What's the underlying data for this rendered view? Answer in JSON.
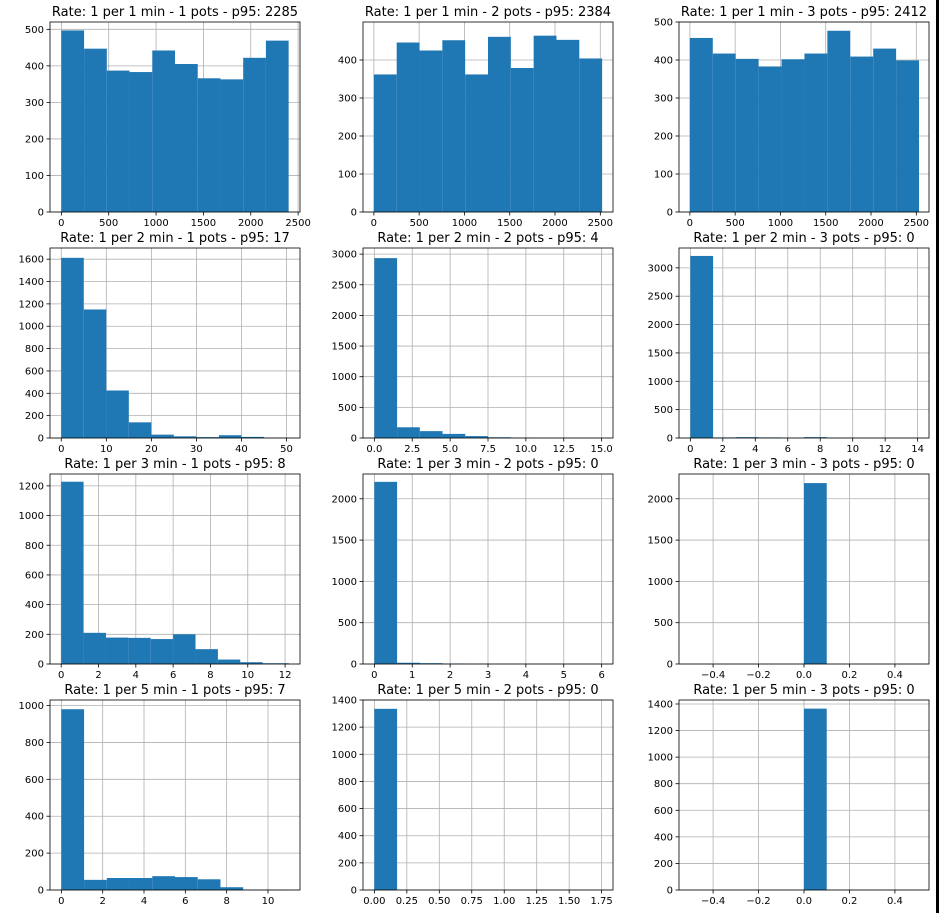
{
  "figure": {
    "accent_color": "#1f77b4",
    "grid_color": "#b0b0b0"
  },
  "chart_data": [
    {
      "type": "bar",
      "title": "Rate: 1 per 1 min - 1 pots - p95: 2285",
      "xlim": [
        -120,
        2520
      ],
      "ylim": [
        0,
        520
      ],
      "xticks": [
        0,
        500,
        1000,
        1500,
        2000,
        2500
      ],
      "yticks": [
        0,
        100,
        200,
        300,
        400,
        500
      ],
      "bin_edges": [
        0,
        240,
        480,
        720,
        960,
        1200,
        1440,
        1680,
        1920,
        2160,
        2400
      ],
      "values": [
        497,
        447,
        387,
        383,
        442,
        405,
        366,
        363,
        422,
        469
      ]
    },
    {
      "type": "bar",
      "title": "Rate: 1 per 1 min - 2 pots - p95: 2384",
      "xlim": [
        -120,
        2640
      ],
      "ylim": [
        0,
        500
      ],
      "xticks": [
        0,
        500,
        1000,
        1500,
        2000,
        2500
      ],
      "yticks": [
        0,
        100,
        200,
        300,
        400
      ],
      "bin_edges": [
        0,
        252,
        504,
        756,
        1008,
        1260,
        1512,
        1764,
        2016,
        2268,
        2520
      ],
      "values": [
        362,
        446,
        425,
        452,
        362,
        461,
        379,
        464,
        453,
        404
      ]
    },
    {
      "type": "bar",
      "title": "Rate: 1 per 1 min - 3 pots - p95: 2412",
      "xlim": [
        -120,
        2640
      ],
      "ylim": [
        0,
        500
      ],
      "xticks": [
        0,
        500,
        1000,
        1500,
        2000,
        2500
      ],
      "yticks": [
        0,
        100,
        200,
        300,
        400,
        500
      ],
      "bin_edges": [
        0,
        253,
        506,
        759,
        1012,
        1265,
        1518,
        1771,
        2024,
        2277,
        2530
      ],
      "values": [
        458,
        417,
        403,
        383,
        402,
        417,
        477,
        409,
        430,
        399
      ]
    },
    {
      "type": "bar",
      "title": "Rate: 1 per 2 min - 1 pots - p95: 17",
      "xlim": [
        -2.5,
        53
      ],
      "ylim": [
        0,
        1700
      ],
      "xticks": [
        0,
        10,
        20,
        30,
        40,
        50
      ],
      "yticks": [
        0,
        200,
        400,
        600,
        800,
        1000,
        1200,
        1400,
        1600
      ],
      "bin_edges": [
        0,
        5,
        10,
        15,
        20,
        25,
        30,
        35,
        40,
        45,
        50
      ],
      "values": [
        1612,
        1150,
        425,
        140,
        30,
        15,
        8,
        25,
        10,
        3
      ]
    },
    {
      "type": "bar",
      "title": "Rate: 1 per 2 min - 2 pots - p95: 4",
      "xlim": [
        -0.75,
        15.75
      ],
      "ylim": [
        0,
        3100
      ],
      "xticks": [
        "0.0",
        "2.5",
        "5.0",
        "7.5",
        "10.0",
        "12.5",
        "15.0"
      ],
      "yticks": [
        0,
        500,
        1000,
        1500,
        2000,
        2500,
        3000
      ],
      "bin_edges": [
        0,
        1.5,
        3,
        4.5,
        6,
        7.5,
        9,
        10.5,
        12,
        13.5,
        15
      ],
      "values": [
        2935,
        175,
        112,
        67,
        31,
        12,
        5,
        2,
        1,
        1
      ]
    },
    {
      "type": "bar",
      "title": "Rate: 1 per 2 min - 3 pots - p95: 0",
      "xlim": [
        -0.7,
        14.7
      ],
      "ylim": [
        0,
        3350
      ],
      "xticks": [
        0,
        2,
        4,
        6,
        8,
        10,
        12,
        14
      ],
      "yticks": [
        0,
        500,
        1000,
        1500,
        2000,
        2500,
        3000
      ],
      "bin_edges": [
        0,
        1.4,
        2.8,
        4.2,
        5.6,
        7,
        8.4,
        9.8,
        11.2,
        12.6,
        14
      ],
      "values": [
        3210,
        10,
        15,
        10,
        3,
        15,
        3,
        1,
        1,
        1
      ]
    },
    {
      "type": "bar",
      "title": "Rate: 1 per 3 min - 1 pots - p95: 8",
      "xlim": [
        -0.6,
        12.8
      ],
      "ylim": [
        0,
        1280
      ],
      "xticks": [
        0,
        2,
        4,
        6,
        8,
        10,
        12
      ],
      "yticks": [
        0,
        200,
        400,
        600,
        800,
        1000,
        1200
      ],
      "bin_edges": [
        0,
        1.2,
        2.4,
        3.6,
        4.8,
        6,
        7.2,
        8.4,
        9.6,
        10.8,
        12.2
      ],
      "values": [
        1228,
        210,
        178,
        176,
        168,
        200,
        100,
        30,
        12,
        5
      ]
    },
    {
      "type": "bar",
      "title": "Rate: 1 per 3 min - 2 pots - p95: 0",
      "xlim": [
        -0.3,
        6.3
      ],
      "ylim": [
        0,
        2300
      ],
      "xticks": [
        0,
        1,
        2,
        3,
        4,
        5,
        6
      ],
      "yticks": [
        0,
        500,
        1000,
        1500,
        2000
      ],
      "bin_edges": [
        0,
        0.6,
        1.2,
        1.8,
        2.4,
        3,
        3.6,
        4.2,
        4.8,
        5.4,
        6
      ],
      "values": [
        2205,
        15,
        10,
        5,
        2,
        1,
        1,
        1,
        1,
        1
      ]
    },
    {
      "type": "bar",
      "title": "Rate: 1 per 3 min - 3 pots - p95: 0",
      "xlim": [
        -0.55,
        0.55
      ],
      "ylim": [
        0,
        2300
      ],
      "xticks": [
        "−0.4",
        "−0.2",
        "0.0",
        "0.2",
        "0.4"
      ],
      "yticks": [
        0,
        500,
        1000,
        1500,
        2000
      ],
      "bin_edges": [
        0,
        0.1
      ],
      "values": [
        2190
      ]
    },
    {
      "type": "bar",
      "title": "Rate: 1 per 5 min - 1 pots - p95: 7",
      "xlim": [
        -0.55,
        11.55
      ],
      "ylim": [
        0,
        1030
      ],
      "xticks": [
        0,
        2,
        4,
        6,
        8,
        10
      ],
      "yticks": [
        0,
        200,
        400,
        600,
        800,
        1000
      ],
      "bin_edges": [
        0,
        1.1,
        2.2,
        3.3,
        4.4,
        5.5,
        6.6,
        7.7,
        8.8,
        9.9,
        11
      ],
      "values": [
        980,
        55,
        65,
        65,
        75,
        70,
        58,
        15,
        2,
        1
      ]
    },
    {
      "type": "bar",
      "title": "Rate: 1 per 5 min - 2 pots - p95: 0",
      "xlim": [
        -0.0875,
        1.8375
      ],
      "ylim": [
        0,
        1400
      ],
      "xticks": [
        "0.00",
        "0.25",
        "0.50",
        "0.75",
        "1.00",
        "1.25",
        "1.50",
        "1.75"
      ],
      "yticks": [
        0,
        200,
        400,
        600,
        800,
        1000,
        1200,
        1400
      ],
      "bin_edges": [
        0,
        0.175
      ],
      "values": [
        1335
      ]
    },
    {
      "type": "bar",
      "title": "Rate: 1 per 5 min - 3 pots - p95: 0",
      "xlim": [
        -0.55,
        0.55
      ],
      "ylim": [
        0,
        1430
      ],
      "xticks": [
        "−0.4",
        "−0.2",
        "0.0",
        "0.2",
        "0.4"
      ],
      "yticks": [
        0,
        200,
        400,
        600,
        800,
        1000,
        1200,
        1400
      ],
      "bin_edges": [
        0,
        0.1
      ],
      "values": [
        1365
      ]
    }
  ]
}
